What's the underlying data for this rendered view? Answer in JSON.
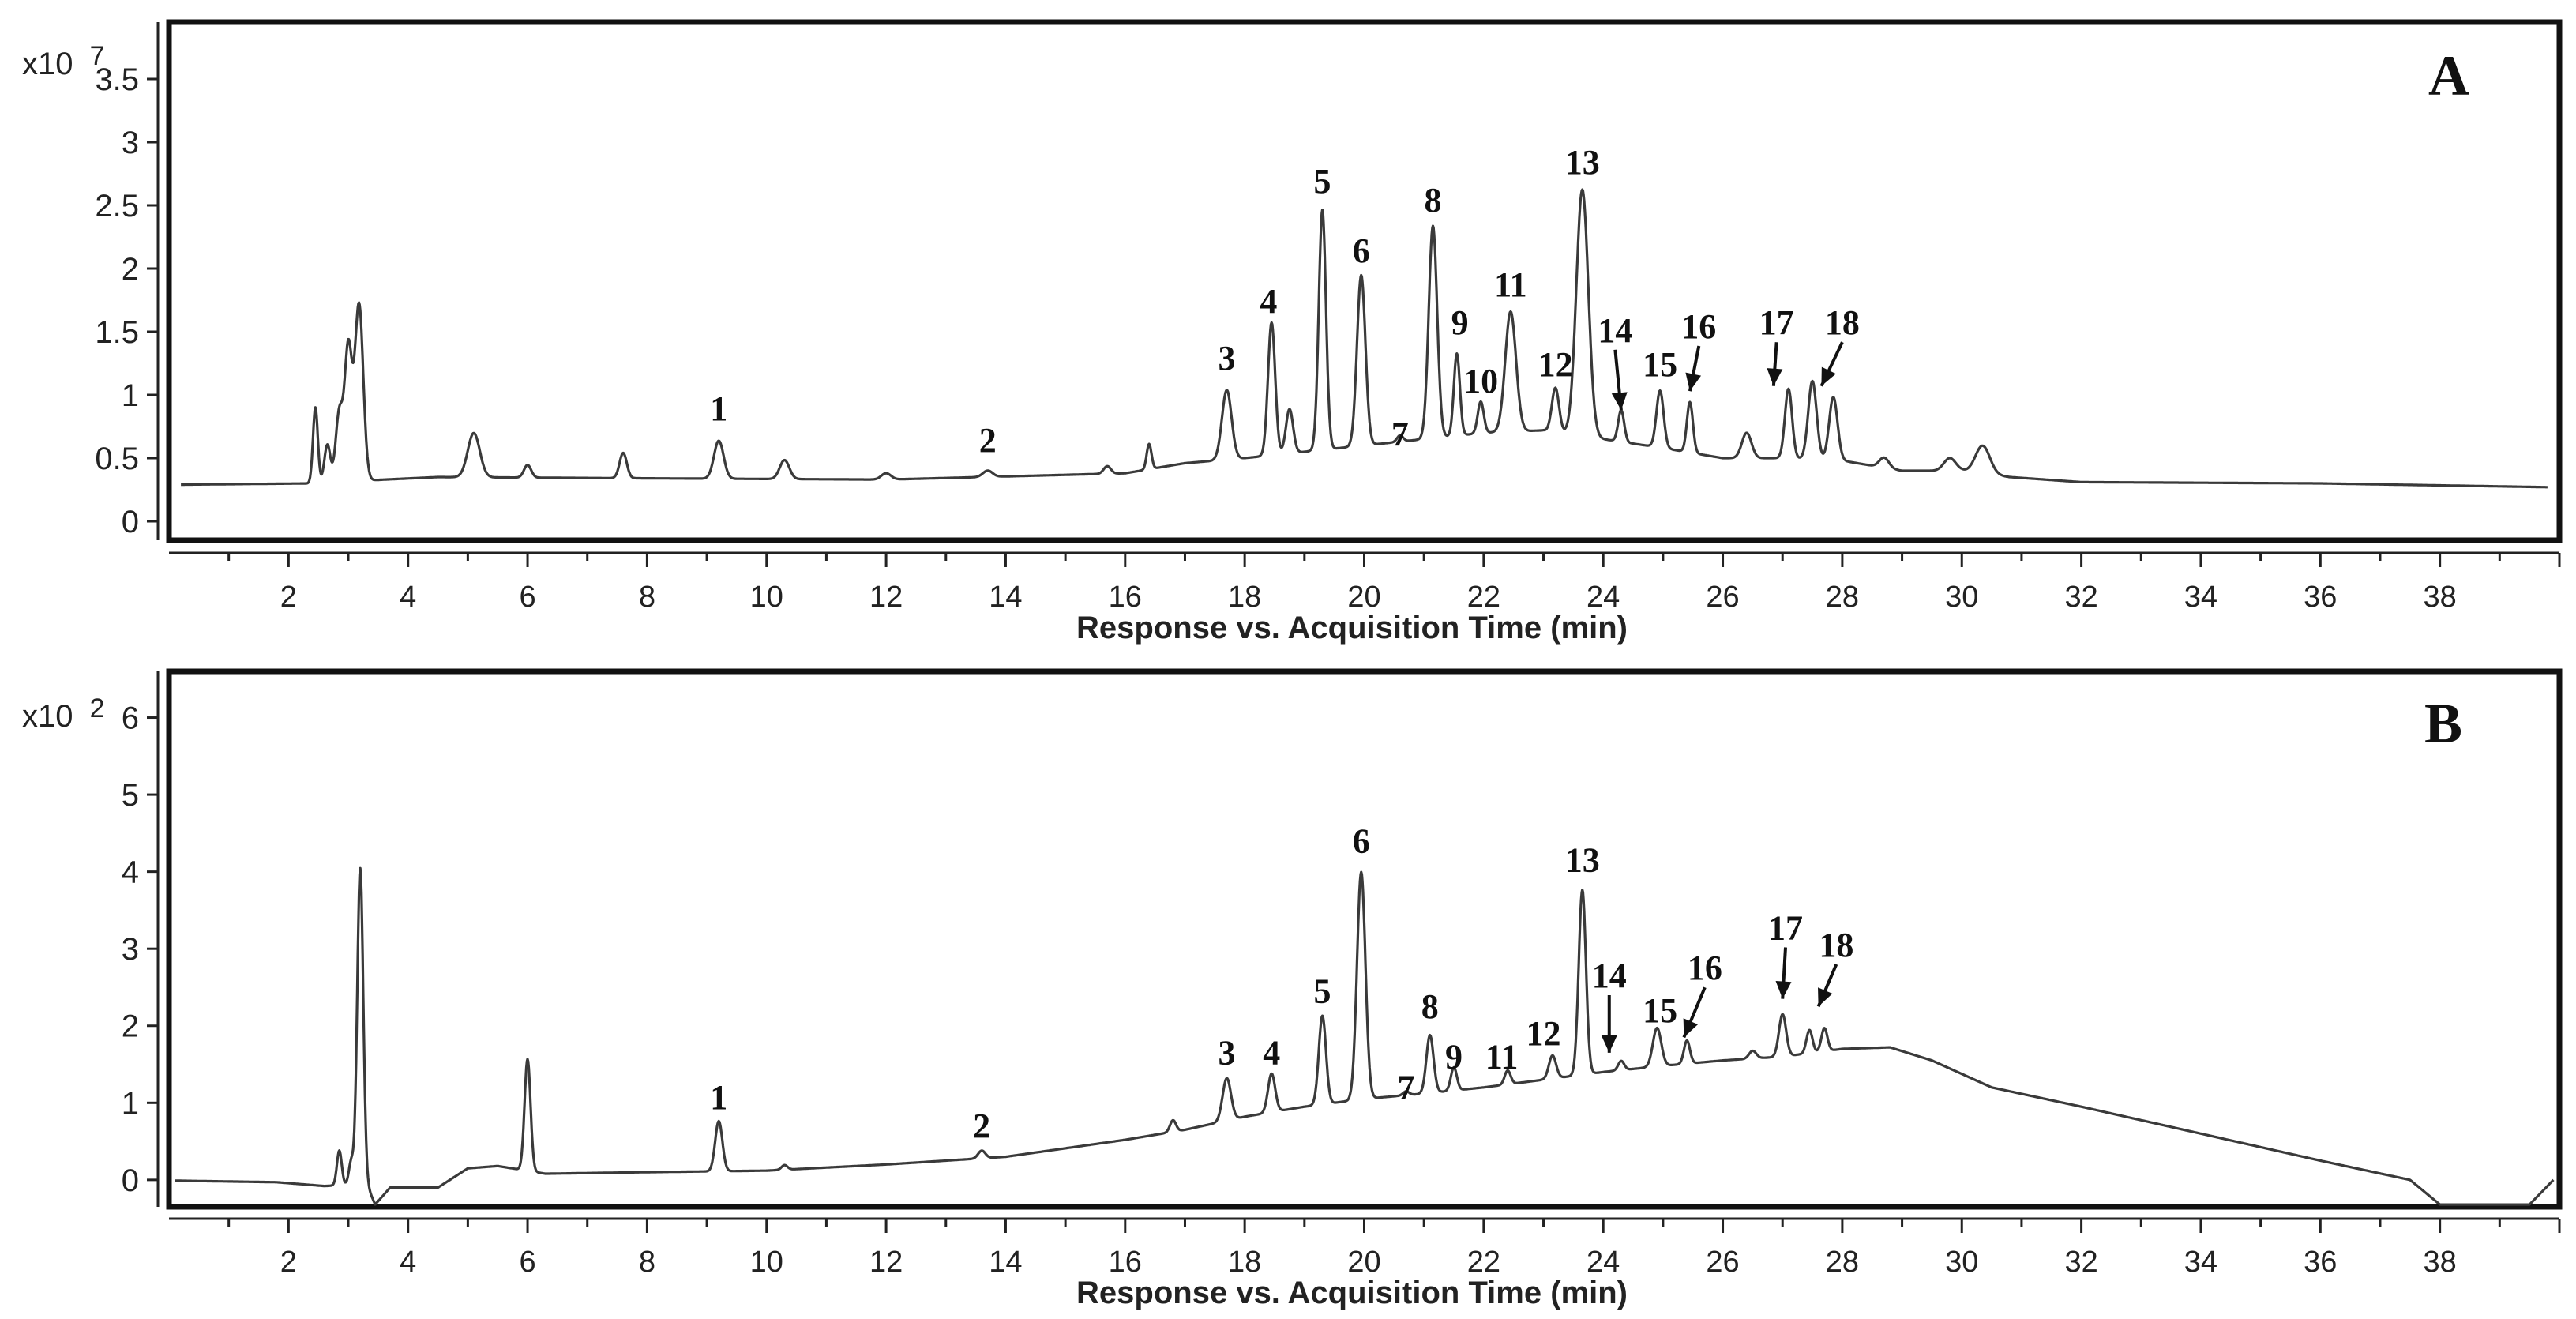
{
  "chart_data": [
    {
      "type": "line",
      "panel": "A",
      "xlabel": "Response vs. Acquisition Time (min)",
      "ylabel": "",
      "y_multiplier": {
        "base": "x10",
        "exponent": "7"
      },
      "xlim": [
        0,
        40
      ],
      "ylim": [
        -0.15,
        3.95
      ],
      "x_ticks": [
        2,
        4,
        6,
        8,
        10,
        12,
        14,
        16,
        18,
        20,
        22,
        24,
        26,
        28,
        30,
        32,
        34,
        36,
        38
      ],
      "y_ticks": [
        {
          "value": 0,
          "label": "0"
        },
        {
          "value": 0.5,
          "label": "0.5"
        },
        {
          "value": 1,
          "label": "1"
        },
        {
          "value": 1.5,
          "label": "1.5"
        },
        {
          "value": 2,
          "label": "2"
        },
        {
          "value": 2.5,
          "label": "2.5"
        },
        {
          "value": 3,
          "label": "3"
        },
        {
          "value": 3.5,
          "label": "3.5"
        }
      ],
      "baseline": [
        [
          0.2,
          0.29
        ],
        [
          2.4,
          0.3
        ],
        [
          3.6,
          0.33
        ],
        [
          4.5,
          0.35
        ],
        [
          8,
          0.34
        ],
        [
          12,
          0.33
        ],
        [
          16,
          0.38
        ],
        [
          17,
          0.46
        ],
        [
          18,
          0.5
        ],
        [
          19,
          0.55
        ],
        [
          20,
          0.6
        ],
        [
          21,
          0.65
        ],
        [
          22,
          0.7
        ],
        [
          23,
          0.72
        ],
        [
          24,
          0.65
        ],
        [
          25,
          0.58
        ],
        [
          26,
          0.5
        ],
        [
          27,
          0.5
        ],
        [
          28,
          0.48
        ],
        [
          29,
          0.4
        ],
        [
          30,
          0.4
        ],
        [
          30.8,
          0.35
        ],
        [
          32,
          0.31
        ],
        [
          36,
          0.3
        ],
        [
          39.8,
          0.27
        ]
      ],
      "peaks": [
        {
          "t": 2.45,
          "h": 0.6,
          "w": 0.04
        },
        {
          "t": 2.65,
          "h": 0.3,
          "w": 0.05
        },
        {
          "t": 2.85,
          "h": 0.55,
          "w": 0.06
        },
        {
          "t": 3.0,
          "h": 1.05,
          "w": 0.06
        },
        {
          "t": 3.18,
          "h": 1.4,
          "w": 0.07
        },
        {
          "t": 5.1,
          "h": 0.35,
          "w": 0.1
        },
        {
          "t": 6.0,
          "h": 0.1,
          "w": 0.06
        },
        {
          "t": 7.6,
          "h": 0.2,
          "w": 0.06
        },
        {
          "t": 9.2,
          "h": 0.3,
          "w": 0.08
        },
        {
          "t": 10.3,
          "h": 0.15,
          "w": 0.08
        },
        {
          "t": 12.0,
          "h": 0.05,
          "w": 0.08
        },
        {
          "t": 13.7,
          "h": 0.05,
          "w": 0.08
        },
        {
          "t": 15.7,
          "h": 0.06,
          "w": 0.06
        },
        {
          "t": 16.4,
          "h": 0.2,
          "w": 0.04
        },
        {
          "t": 17.7,
          "h": 0.55,
          "w": 0.08
        },
        {
          "t": 18.45,
          "h": 1.05,
          "w": 0.06
        },
        {
          "t": 18.75,
          "h": 0.35,
          "w": 0.06
        },
        {
          "t": 19.3,
          "h": 1.9,
          "w": 0.06
        },
        {
          "t": 19.95,
          "h": 1.35,
          "w": 0.07
        },
        {
          "t": 20.6,
          "h": 0.05,
          "w": 0.05
        },
        {
          "t": 21.15,
          "h": 1.68,
          "w": 0.07
        },
        {
          "t": 21.55,
          "h": 0.65,
          "w": 0.05
        },
        {
          "t": 21.95,
          "h": 0.25,
          "w": 0.05
        },
        {
          "t": 22.45,
          "h": 0.95,
          "w": 0.09
        },
        {
          "t": 23.2,
          "h": 0.35,
          "w": 0.06
        },
        {
          "t": 23.65,
          "h": 1.95,
          "w": 0.1
        },
        {
          "t": 24.3,
          "h": 0.25,
          "w": 0.05
        },
        {
          "t": 24.95,
          "h": 0.45,
          "w": 0.06
        },
        {
          "t": 25.45,
          "h": 0.4,
          "w": 0.05
        },
        {
          "t": 26.4,
          "h": 0.2,
          "w": 0.08
        },
        {
          "t": 27.1,
          "h": 0.55,
          "w": 0.06
        },
        {
          "t": 27.5,
          "h": 0.62,
          "w": 0.07
        },
        {
          "t": 27.85,
          "h": 0.5,
          "w": 0.07
        },
        {
          "t": 28.7,
          "h": 0.08,
          "w": 0.08
        },
        {
          "t": 29.8,
          "h": 0.1,
          "w": 0.1
        },
        {
          "t": 30.35,
          "h": 0.22,
          "w": 0.12
        }
      ],
      "annotations": [
        {
          "label": "1",
          "t": 9.2,
          "y": 0.8
        },
        {
          "label": "2",
          "t": 13.7,
          "y": 0.55
        },
        {
          "label": "3",
          "t": 17.7,
          "y": 1.2
        },
        {
          "label": "4",
          "t": 18.4,
          "y": 1.65
        },
        {
          "label": "5",
          "t": 19.3,
          "y": 2.6
        },
        {
          "label": "6",
          "t": 19.95,
          "y": 2.05
        },
        {
          "label": "7",
          "t": 20.6,
          "y": 0.6
        },
        {
          "label": "8",
          "t": 21.15,
          "y": 2.45
        },
        {
          "label": "9",
          "t": 21.6,
          "y": 1.48
        },
        {
          "label": "10",
          "t": 21.95,
          "y": 1.02
        },
        {
          "label": "11",
          "t": 22.45,
          "y": 1.78
        },
        {
          "label": "12",
          "t": 23.2,
          "y": 1.15
        },
        {
          "label": "13",
          "t": 23.65,
          "y": 2.75
        },
        {
          "label": "14",
          "t": 24.2,
          "y": 1.42,
          "arrow_to": [
            24.3,
            0.88
          ]
        },
        {
          "label": "15",
          "t": 24.95,
          "y": 1.15
        },
        {
          "label": "16",
          "t": 25.6,
          "y": 1.45,
          "arrow_to": [
            25.45,
            1.03
          ]
        },
        {
          "label": "17",
          "t": 26.9,
          "y": 1.48,
          "arrow_to": [
            26.85,
            1.07
          ]
        },
        {
          "label": "18",
          "t": 28.0,
          "y": 1.48,
          "arrow_to": [
            27.65,
            1.07
          ]
        }
      ]
    },
    {
      "type": "line",
      "panel": "B",
      "xlabel": "Response vs. Acquisition Time (min)",
      "ylabel": "",
      "y_multiplier": {
        "base": "x10",
        "exponent": "2"
      },
      "xlim": [
        0,
        40
      ],
      "ylim": [
        -0.35,
        6.6
      ],
      "x_ticks": [
        2,
        4,
        6,
        8,
        10,
        12,
        14,
        16,
        18,
        20,
        22,
        24,
        26,
        28,
        30,
        32,
        34,
        36,
        38
      ],
      "y_ticks": [
        {
          "value": 0,
          "label": "0"
        },
        {
          "value": 1,
          "label": "1"
        },
        {
          "value": 2,
          "label": "2"
        },
        {
          "value": 3,
          "label": "3"
        },
        {
          "value": 4,
          "label": "4"
        },
        {
          "value": 5,
          "label": "5"
        },
        {
          "value": 6,
          "label": "6"
        }
      ],
      "baseline": [
        [
          0.1,
          -0.01
        ],
        [
          1.8,
          -0.03
        ],
        [
          2.6,
          -0.08
        ],
        [
          3.3,
          -0.05
        ],
        [
          3.45,
          -0.32
        ],
        [
          3.7,
          -0.1
        ],
        [
          4.5,
          -0.1
        ],
        [
          5.0,
          0.15
        ],
        [
          5.5,
          0.18
        ],
        [
          6.3,
          0.08
        ],
        [
          8,
          0.1
        ],
        [
          10,
          0.12
        ],
        [
          12,
          0.2
        ],
        [
          14,
          0.3
        ],
        [
          16,
          0.52
        ],
        [
          17,
          0.65
        ],
        [
          18,
          0.82
        ],
        [
          19,
          0.95
        ],
        [
          20,
          1.05
        ],
        [
          21,
          1.12
        ],
        [
          22,
          1.2
        ],
        [
          23,
          1.3
        ],
        [
          24,
          1.4
        ],
        [
          25,
          1.48
        ],
        [
          26,
          1.55
        ],
        [
          27,
          1.6
        ],
        [
          28,
          1.7
        ],
        [
          28.8,
          1.72
        ],
        [
          29.5,
          1.55
        ],
        [
          30.5,
          1.2
        ],
        [
          32,
          0.95
        ],
        [
          34,
          0.6
        ],
        [
          36,
          0.25
        ],
        [
          37.5,
          0.0
        ],
        [
          38.0,
          -0.32
        ],
        [
          39.5,
          -0.32
        ],
        [
          39.9,
          0.0
        ]
      ],
      "peaks": [
        {
          "t": 2.85,
          "h": 0.45,
          "w": 0.04
        },
        {
          "t": 3.05,
          "h": 0.3,
          "w": 0.04
        },
        {
          "t": 3.2,
          "h": 4.1,
          "w": 0.05
        },
        {
          "t": 6.0,
          "h": 1.45,
          "w": 0.05
        },
        {
          "t": 9.2,
          "h": 0.65,
          "w": 0.06
        },
        {
          "t": 10.3,
          "h": 0.06,
          "w": 0.05
        },
        {
          "t": 13.6,
          "h": 0.1,
          "w": 0.06
        },
        {
          "t": 16.8,
          "h": 0.15,
          "w": 0.05
        },
        {
          "t": 17.7,
          "h": 0.55,
          "w": 0.07
        },
        {
          "t": 18.45,
          "h": 0.5,
          "w": 0.06
        },
        {
          "t": 19.3,
          "h": 1.15,
          "w": 0.06
        },
        {
          "t": 19.95,
          "h": 2.95,
          "w": 0.07
        },
        {
          "t": 20.7,
          "h": 0.05,
          "w": 0.05
        },
        {
          "t": 21.1,
          "h": 0.75,
          "w": 0.06
        },
        {
          "t": 21.5,
          "h": 0.3,
          "w": 0.05
        },
        {
          "t": 22.4,
          "h": 0.18,
          "w": 0.05
        },
        {
          "t": 23.15,
          "h": 0.3,
          "w": 0.06
        },
        {
          "t": 23.65,
          "h": 2.4,
          "w": 0.06
        },
        {
          "t": 24.3,
          "h": 0.12,
          "w": 0.05
        },
        {
          "t": 24.9,
          "h": 0.5,
          "w": 0.07
        },
        {
          "t": 25.4,
          "h": 0.3,
          "w": 0.05
        },
        {
          "t": 26.5,
          "h": 0.1,
          "w": 0.06
        },
        {
          "t": 27.0,
          "h": 0.55,
          "w": 0.06
        },
        {
          "t": 27.45,
          "h": 0.3,
          "w": 0.05
        },
        {
          "t": 27.7,
          "h": 0.3,
          "w": 0.05
        }
      ],
      "annotations": [
        {
          "label": "1",
          "t": 9.2,
          "y": 0.92
        },
        {
          "label": "2",
          "t": 13.6,
          "y": 0.55
        },
        {
          "label": "3",
          "t": 17.7,
          "y": 1.5
        },
        {
          "label": "4",
          "t": 18.45,
          "y": 1.5
        },
        {
          "label": "5",
          "t": 19.3,
          "y": 2.3
        },
        {
          "label": "6",
          "t": 19.95,
          "y": 4.25
        },
        {
          "label": "7",
          "t": 20.7,
          "y": 1.05
        },
        {
          "label": "8",
          "t": 21.1,
          "y": 2.1
        },
        {
          "label": "9",
          "t": 21.5,
          "y": 1.45
        },
        {
          "label": "11",
          "t": 22.3,
          "y": 1.45
        },
        {
          "label": "12",
          "t": 23.0,
          "y": 1.75
        },
        {
          "label": "13",
          "t": 23.65,
          "y": 4.0
        },
        {
          "label": "14",
          "t": 24.1,
          "y": 2.5,
          "arrow_to": [
            24.1,
            1.65
          ]
        },
        {
          "label": "15",
          "t": 24.95,
          "y": 2.05
        },
        {
          "label": "16",
          "t": 25.7,
          "y": 2.6,
          "arrow_to": [
            25.35,
            1.85
          ]
        },
        {
          "label": "17",
          "t": 27.05,
          "y": 3.12,
          "arrow_to": [
            27.0,
            2.35
          ]
        },
        {
          "label": "18",
          "t": 27.9,
          "y": 2.9,
          "arrow_to": [
            27.6,
            2.25
          ]
        }
      ]
    }
  ]
}
